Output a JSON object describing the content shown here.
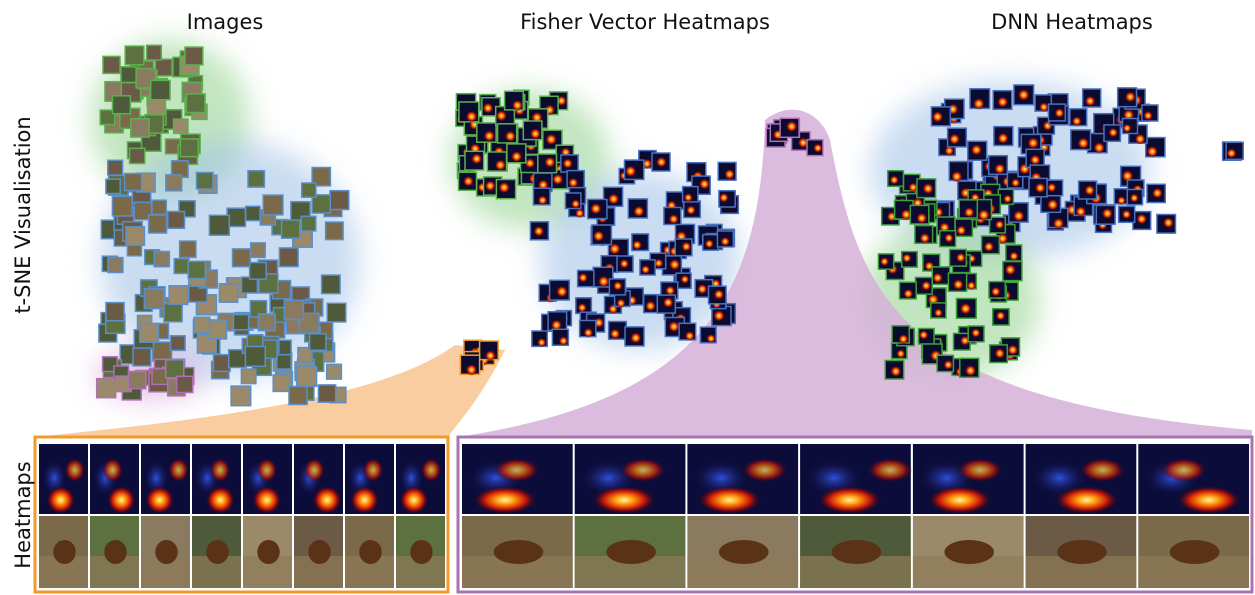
{
  "columns": [
    "Images",
    "Fisher Vector Heatmaps",
    "DNN Heatmaps"
  ],
  "rows": [
    "t-SNE Visualisation",
    "Heatmaps"
  ]
}
